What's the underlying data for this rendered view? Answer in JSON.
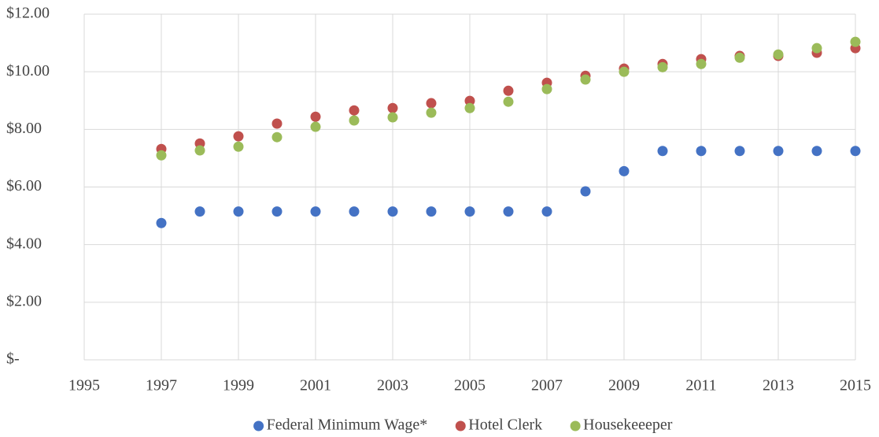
{
  "chart_data": {
    "type": "scatter",
    "x": [
      1997,
      1998,
      1999,
      2000,
      2001,
      2002,
      2003,
      2004,
      2005,
      2006,
      2007,
      2008,
      2009,
      2010,
      2011,
      2012,
      2013,
      2014,
      2015
    ],
    "series": [
      {
        "name": "Federal Minimum Wage*",
        "color": "#4472c4",
        "values": [
          4.75,
          5.15,
          5.15,
          5.15,
          5.15,
          5.15,
          5.15,
          5.15,
          5.15,
          5.15,
          5.15,
          5.85,
          6.55,
          7.25,
          7.25,
          7.25,
          7.25,
          7.25,
          7.25
        ]
      },
      {
        "name": "Hotel Clerk",
        "color": "#c0504d",
        "values": [
          7.32,
          7.51,
          7.76,
          8.2,
          8.44,
          8.66,
          8.74,
          8.91,
          8.99,
          9.34,
          9.62,
          9.86,
          10.11,
          10.27,
          10.44,
          10.55,
          10.55,
          10.66,
          10.82
        ]
      },
      {
        "name": "Housekeeeper",
        "color": "#9bbb59",
        "values": [
          7.1,
          7.27,
          7.4,
          7.73,
          8.09,
          8.31,
          8.42,
          8.58,
          8.74,
          8.96,
          9.4,
          9.73,
          10.0,
          10.16,
          10.27,
          10.49,
          10.6,
          10.82,
          11.04
        ]
      }
    ],
    "xlim": [
      1995,
      2015
    ],
    "xticks": [
      1995,
      1997,
      1999,
      2001,
      2003,
      2005,
      2007,
      2009,
      2011,
      2013,
      2015
    ],
    "ylim": [
      0,
      12
    ],
    "yticks": [
      {
        "value": 0,
        "label": "$-"
      },
      {
        "value": 2,
        "label": "$2.00"
      },
      {
        "value": 4,
        "label": "$4.00"
      },
      {
        "value": 6,
        "label": "$6.00"
      },
      {
        "value": 8,
        "label": "$8.00"
      },
      {
        "value": 10,
        "label": "$10.00"
      },
      {
        "value": 12,
        "label": "$12.00"
      }
    ],
    "grid": true,
    "legend": "bottom"
  }
}
